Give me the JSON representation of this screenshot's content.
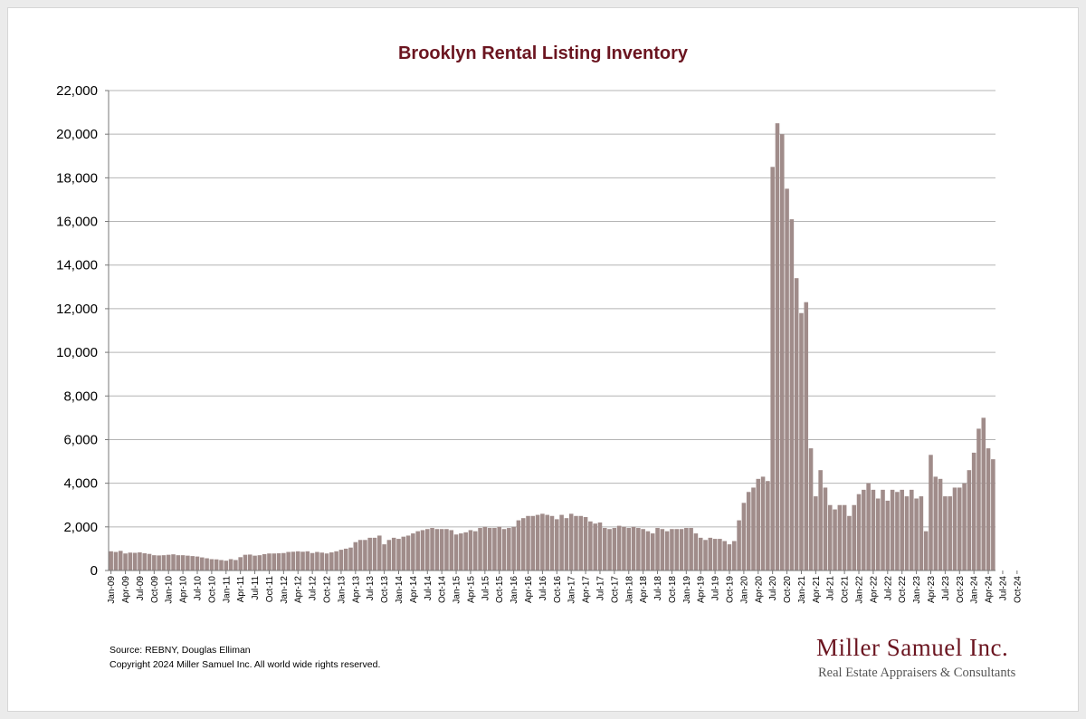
{
  "footer": {
    "source": "Source: REBNY, Douglas Elliman",
    "copyright": "Copyright 2024 Miller Samuel Inc.  All world wide rights reserved."
  },
  "logo": {
    "name": "Miller Samuel Inc.",
    "tagline": "Real Estate Appraisers & Consultants"
  },
  "colors": {
    "bar": "#a08c8a",
    "title": "#6b1520",
    "grid": "#b4b4b4"
  },
  "chart_data": {
    "type": "bar",
    "title": "Brooklyn Rental Listing Inventory",
    "xlabel": "",
    "ylabel": "",
    "ylim": [
      0,
      22000
    ],
    "y_ticks": [
      "0",
      "2,000",
      "4,000",
      "6,000",
      "8,000",
      "10,000",
      "12,000",
      "14,000",
      "16,000",
      "18,000",
      "20,000",
      "22,000"
    ],
    "grid": true,
    "legend": "none",
    "x_start": "Jan-09",
    "x_end": "Oct-24",
    "x_tick_labels": [
      "Jan-09",
      "Apr-09",
      "Jul-09",
      "Oct-09",
      "Jan-10",
      "Apr-10",
      "Jul-10",
      "Oct-10",
      "Jan-11",
      "Apr-11",
      "Jul-11",
      "Oct-11",
      "Jan-12",
      "Apr-12",
      "Jul-12",
      "Oct-12",
      "Jan-13",
      "Apr-13",
      "Jul-13",
      "Oct-13",
      "Jan-14",
      "Apr-14",
      "Jul-14",
      "Oct-14",
      "Jan-15",
      "Apr-15",
      "Jul-15",
      "Oct-15",
      "Jan-16",
      "Apr-16",
      "Jul-16",
      "Oct-16",
      "Jan-17",
      "Apr-17",
      "Jul-17",
      "Oct-17",
      "Jan-18",
      "Apr-18",
      "Jul-18",
      "Oct-18",
      "Jan-19",
      "Apr-19",
      "Jul-19",
      "Oct-19",
      "Jan-20",
      "Apr-20",
      "Jul-20",
      "Oct-20",
      "Jan-21",
      "Apr-21",
      "Jul-21",
      "Oct-21",
      "Jan-22",
      "Apr-22",
      "Jul-22",
      "Oct-22",
      "Jan-23",
      "Apr-23",
      "Jul-23",
      "Oct-23",
      "Jan-24",
      "Apr-24",
      "Jul-24",
      "Oct-24"
    ],
    "values": [
      880,
      850,
      900,
      780,
      820,
      810,
      830,
      790,
      760,
      700,
      690,
      700,
      720,
      740,
      700,
      700,
      680,
      660,
      640,
      600,
      560,
      520,
      510,
      480,
      450,
      520,
      480,
      610,
      720,
      730,
      680,
      700,
      750,
      780,
      780,
      790,
      800,
      850,
      860,
      880,
      860,
      880,
      800,
      850,
      820,
      780,
      830,
      880,
      950,
      1000,
      1050,
      1300,
      1400,
      1400,
      1500,
      1500,
      1600,
      1200,
      1400,
      1500,
      1450,
      1550,
      1600,
      1700,
      1800,
      1850,
      1900,
      1950,
      1900,
      1900,
      1900,
      1850,
      1650,
      1700,
      1750,
      1850,
      1800,
      1950,
      2000,
      1950,
      1950,
      2000,
      1900,
      1950,
      2000,
      2300,
      2400,
      2500,
      2500,
      2550,
      2600,
      2550,
      2500,
      2350,
      2550,
      2400,
      2600,
      2500,
      2500,
      2450,
      2250,
      2150,
      2200,
      1950,
      1900,
      1950,
      2050,
      2000,
      1950,
      2000,
      1950,
      1900,
      1800,
      1700,
      1950,
      1900,
      1800,
      1900,
      1900,
      1900,
      1950,
      1950,
      1700,
      1500,
      1400,
      1500,
      1450,
      1450,
      1350,
      1200,
      1350,
      2300,
      3100,
      3600,
      3800,
      4200,
      4300,
      4100,
      18500,
      20500,
      20000,
      17500,
      16100,
      13400,
      11800,
      12300,
      5600,
      3400,
      4600,
      3800,
      3000,
      2800,
      3000,
      3000,
      2500,
      3000,
      3500,
      3700,
      4000,
      3700,
      3300,
      3700,
      3200,
      3700,
      3600,
      3700,
      3400,
      3700,
      3300,
      3400,
      1800,
      5300,
      4300,
      4200,
      3400,
      3400,
      3800,
      3800,
      4000,
      4600,
      5400,
      6500,
      7000,
      5600,
      5100
    ]
  }
}
